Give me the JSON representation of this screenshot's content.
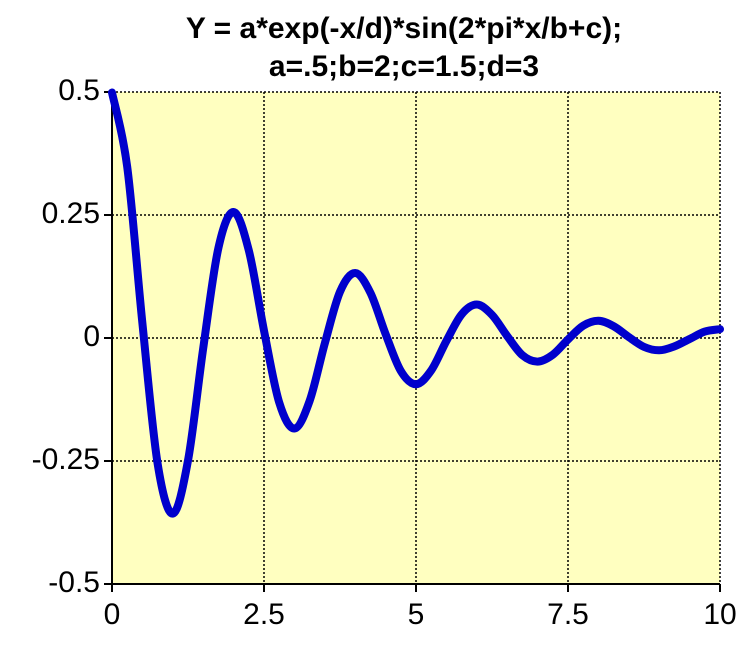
{
  "chart_data": {
    "type": "line",
    "title": [
      "Y = a*exp(-x/d)*sin(2*pi*x/b+c);",
      "a=.5;b=2;c=1.5;d=3"
    ],
    "x": [
      0,
      0.25,
      0.5,
      0.75,
      1,
      1.25,
      1.5,
      1.75,
      2,
      2.25,
      2.5,
      2.75,
      3,
      3.25,
      3.5,
      3.75,
      4,
      4.25,
      4.5,
      4.75,
      5,
      5.25,
      5.5,
      5.75,
      6,
      6.25,
      6.5,
      6.75,
      7,
      7.25,
      7.5,
      7.75,
      8,
      8.25,
      8.5,
      8.75,
      9,
      9.25,
      9.5,
      9.75,
      10
    ],
    "series": [
      {
        "color": "#0000cc",
        "values": [
          0.499,
          0.348,
          0.03,
          -0.255,
          -0.357,
          -0.249,
          -0.021,
          0.183,
          0.256,
          0.178,
          0.015,
          -0.131,
          -0.184,
          -0.128,
          -0.011,
          0.094,
          0.132,
          0.092,
          0.008,
          -0.067,
          -0.094,
          -0.066,
          -0.006,
          0.048,
          0.068,
          0.047,
          0.004,
          -0.035,
          -0.048,
          -0.034,
          -0.003,
          0.025,
          0.035,
          0.024,
          0.002,
          -0.018,
          -0.025,
          -0.017,
          -0.002,
          0.013,
          0.018
        ]
      }
    ],
    "xlim": [
      0,
      10
    ],
    "xticks": [
      0,
      2.5,
      5,
      7.5,
      10
    ],
    "ylim": [
      -0.5,
      0.5
    ],
    "yticks": [
      0.5,
      0.25,
      0,
      -0.25,
      -0.5
    ],
    "grid": true,
    "background": "#ffffc0"
  }
}
